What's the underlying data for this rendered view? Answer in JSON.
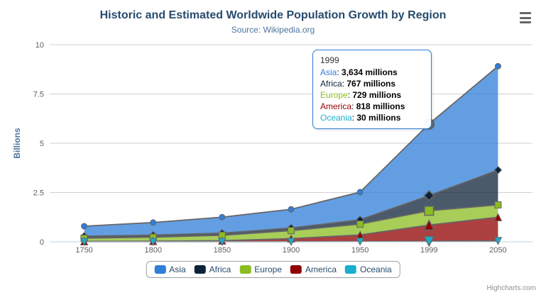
{
  "header": {
    "title": "Historic and Estimated Worldwide Population Growth by Region",
    "subtitle": "Source: Wikipedia.org"
  },
  "credits": {
    "label": "Highcharts.com"
  },
  "colors": {
    "grid": "#d0d0d0",
    "axis_line": "#c0d0e0",
    "series_edge": "#666666",
    "axis_label": "#606060",
    "axis_title": "#4d759e",
    "tooltip_border": "#2f7ed8"
  },
  "chart_data": {
    "type": "area",
    "stacking": "normal",
    "title": "Historic and Estimated Worldwide Population Growth by Region",
    "subtitle": "Source: Wikipedia.org",
    "categories": [
      "1750",
      "1800",
      "1850",
      "1900",
      "1950",
      "1999",
      "2050"
    ],
    "xlabel": "",
    "ylabel": "Billions",
    "unit": "millions",
    "ylim": [
      0,
      10
    ],
    "yticks": [
      "0",
      "2.5",
      "5",
      "7.5",
      "10"
    ],
    "grid": true,
    "legend_position": "bottom",
    "hover_category_index": 5,
    "series": [
      {
        "name": "Asia",
        "color": "#2f7ed8",
        "marker": "circle",
        "values": [
          502,
          635,
          809,
          947,
          1402,
          3634,
          5268
        ]
      },
      {
        "name": "Africa",
        "color": "#0d233a",
        "marker": "diamond",
        "values": [
          106,
          107,
          111,
          133,
          221,
          767,
          1766
        ]
      },
      {
        "name": "Europe",
        "color": "#8bbc21",
        "marker": "square",
        "values": [
          163,
          203,
          276,
          408,
          547,
          729,
          628
        ]
      },
      {
        "name": "America",
        "color": "#910000",
        "marker": "triangle",
        "values": [
          18,
          31,
          54,
          156,
          339,
          818,
          1201
        ]
      },
      {
        "name": "Oceania",
        "color": "#1aadce",
        "marker": "triangle-down",
        "values": [
          2,
          2,
          2,
          6,
          13,
          30,
          46
        ]
      }
    ]
  },
  "tooltip": {
    "header": "1999",
    "rows": [
      {
        "name": "Asia",
        "color": "#2f7ed8",
        "value": "3,634 millions"
      },
      {
        "name": "Africa",
        "color": "#0d233a",
        "value": "767 millions"
      },
      {
        "name": "Europe",
        "color": "#8bbc21",
        "value": "729 millions"
      },
      {
        "name": "America",
        "color": "#910000",
        "value": "818 millions"
      },
      {
        "name": "Oceania",
        "color": "#1aadce",
        "value": "30 millions"
      }
    ]
  }
}
